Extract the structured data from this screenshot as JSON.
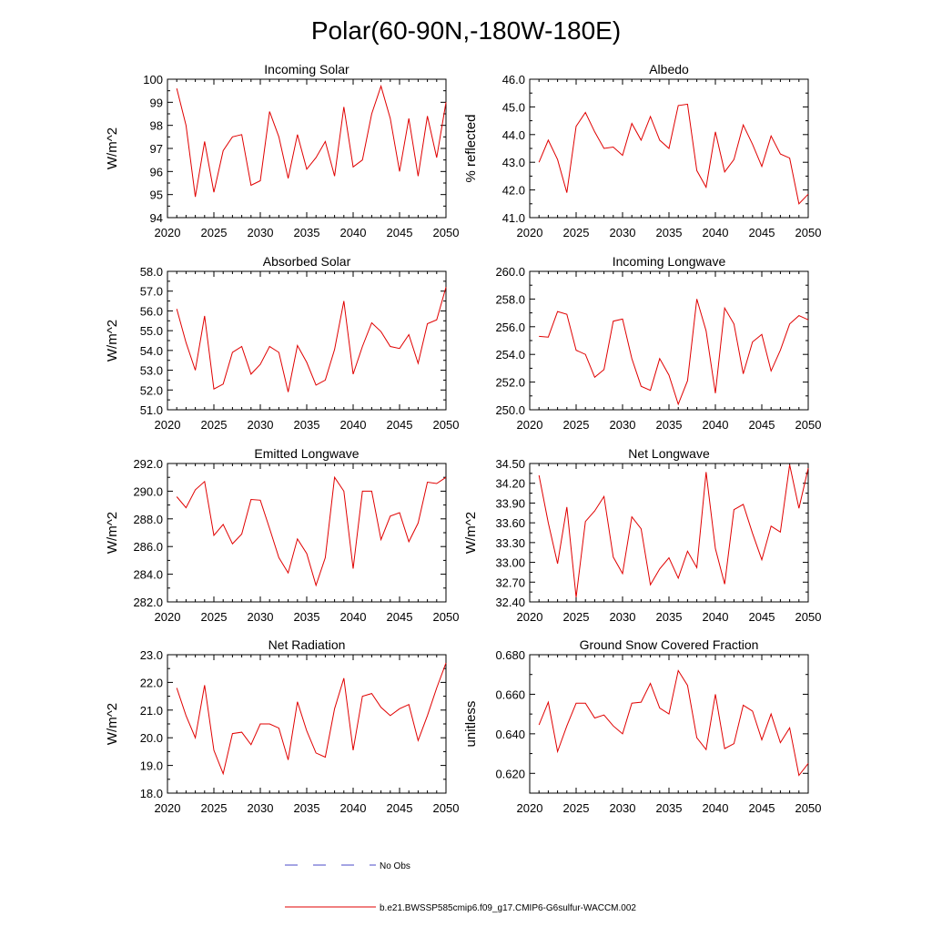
{
  "title": "Polar(60-90N,-180W-180E)",
  "legend": {
    "entries": [
      {
        "label": "No Obs",
        "color": "#4a4ac8",
        "style": "dashed"
      },
      {
        "label": "b.e21.BWSSP585cmip6.f09_g17.CMIP6-G6sulfur-WACCM.002",
        "color": "#e00000",
        "style": "solid"
      }
    ]
  },
  "chart_data": [
    {
      "type": "line",
      "title": "Incoming Solar",
      "ylabel": "W/m^2",
      "xlim": [
        2020,
        2050
      ],
      "ylim": [
        94,
        100
      ],
      "xticks": [
        2020,
        2025,
        2030,
        2035,
        2040,
        2045,
        2050
      ],
      "yticks": [
        94,
        95,
        96,
        97,
        98,
        99,
        100
      ],
      "ytick_labels": [
        "94",
        "95",
        "96",
        "97",
        "98",
        "99",
        "100"
      ],
      "x": [
        2021,
        2022,
        2023,
        2024,
        2025,
        2026,
        2027,
        2028,
        2029,
        2030,
        2031,
        2032,
        2033,
        2034,
        2035,
        2036,
        2037,
        2038,
        2039,
        2040,
        2041,
        2042,
        2043,
        2044,
        2045,
        2046,
        2047,
        2048,
        2049,
        2050
      ],
      "values": [
        99.6,
        98.0,
        94.9,
        97.3,
        95.1,
        96.9,
        97.5,
        97.6,
        95.4,
        95.6,
        98.6,
        97.5,
        95.7,
        97.6,
        96.1,
        96.6,
        97.3,
        95.8,
        98.8,
        96.2,
        96.5,
        98.5,
        99.7,
        98.3,
        96.0,
        98.3,
        95.8,
        98.4,
        96.6,
        99.0
      ]
    },
    {
      "type": "line",
      "title": "Albedo",
      "ylabel": "% reflected",
      "xlim": [
        2020,
        2050
      ],
      "ylim": [
        41.0,
        46.0
      ],
      "xticks": [
        2020,
        2025,
        2030,
        2035,
        2040,
        2045,
        2050
      ],
      "yticks": [
        41,
        42,
        43,
        44,
        45,
        46
      ],
      "ytick_labels": [
        "41.0",
        "42.0",
        "43.0",
        "44.0",
        "45.0",
        "46.0"
      ],
      "x": [
        2021,
        2022,
        2023,
        2024,
        2025,
        2026,
        2027,
        2028,
        2029,
        2030,
        2031,
        2032,
        2033,
        2034,
        2035,
        2036,
        2037,
        2038,
        2039,
        2040,
        2041,
        2042,
        2043,
        2044,
        2045,
        2046,
        2047,
        2048,
        2049,
        2050
      ],
      "values": [
        43.0,
        43.8,
        43.1,
        41.9,
        44.3,
        44.8,
        44.1,
        43.5,
        43.55,
        43.25,
        44.4,
        43.8,
        44.65,
        43.8,
        43.5,
        45.05,
        45.1,
        42.7,
        42.1,
        44.1,
        42.65,
        43.1,
        44.35,
        43.65,
        42.85,
        43.95,
        43.3,
        43.15,
        41.5,
        41.85
      ]
    },
    {
      "type": "line",
      "title": "Absorbed Solar",
      "ylabel": "W/m^2",
      "xlim": [
        2020,
        2050
      ],
      "ylim": [
        51.0,
        58.0
      ],
      "xticks": [
        2020,
        2025,
        2030,
        2035,
        2040,
        2045,
        2050
      ],
      "yticks": [
        51,
        52,
        53,
        54,
        55,
        56,
        57,
        58
      ],
      "ytick_labels": [
        "51.0",
        "52.0",
        "53.0",
        "54.0",
        "55.0",
        "56.0",
        "57.0",
        "58.0"
      ],
      "x": [
        2021,
        2022,
        2023,
        2024,
        2025,
        2026,
        2027,
        2028,
        2029,
        2030,
        2031,
        2032,
        2033,
        2034,
        2035,
        2036,
        2037,
        2038,
        2039,
        2040,
        2041,
        2042,
        2043,
        2044,
        2045,
        2046,
        2047,
        2048,
        2049,
        2050
      ],
      "values": [
        56.1,
        54.4,
        53.0,
        55.75,
        52.05,
        52.3,
        53.9,
        54.2,
        52.8,
        53.3,
        54.2,
        53.9,
        51.9,
        54.25,
        53.4,
        52.25,
        52.5,
        54.05,
        56.5,
        52.8,
        54.2,
        55.4,
        54.95,
        54.2,
        54.1,
        54.8,
        53.35,
        55.35,
        55.55,
        57.2
      ]
    },
    {
      "type": "line",
      "title": "Incoming Longwave",
      "ylabel": "",
      "xlim": [
        2020,
        2050
      ],
      "ylim": [
        250.0,
        260.0
      ],
      "xticks": [
        2020,
        2025,
        2030,
        2035,
        2040,
        2045,
        2050
      ],
      "yticks": [
        250,
        252,
        254,
        256,
        258,
        260
      ],
      "ytick_labels": [
        "250.0",
        "252.0",
        "254.0",
        "256.0",
        "258.0",
        "260.0"
      ],
      "x": [
        2021,
        2022,
        2023,
        2024,
        2025,
        2026,
        2027,
        2028,
        2029,
        2030,
        2031,
        2032,
        2033,
        2034,
        2035,
        2036,
        2037,
        2038,
        2039,
        2040,
        2041,
        2042,
        2043,
        2044,
        2045,
        2046,
        2047,
        2048,
        2049,
        2050
      ],
      "values": [
        255.3,
        255.25,
        257.1,
        256.9,
        254.3,
        254.0,
        252.35,
        252.9,
        256.4,
        256.55,
        253.7,
        251.7,
        251.4,
        253.7,
        252.5,
        250.4,
        252.1,
        258.0,
        255.7,
        251.2,
        257.35,
        256.2,
        252.6,
        254.9,
        255.45,
        252.8,
        254.3,
        256.2,
        256.8,
        256.5
      ]
    },
    {
      "type": "line",
      "title": "Emitted Longwave",
      "ylabel": "W/m^2",
      "xlim": [
        2020,
        2050
      ],
      "ylim": [
        282.0,
        292.0
      ],
      "xticks": [
        2020,
        2025,
        2030,
        2035,
        2040,
        2045,
        2050
      ],
      "yticks": [
        282,
        284,
        286,
        288,
        290,
        292
      ],
      "ytick_labels": [
        "282.0",
        "284.0",
        "286.0",
        "288.0",
        "290.0",
        "292.0"
      ],
      "x": [
        2021,
        2022,
        2023,
        2024,
        2025,
        2026,
        2027,
        2028,
        2029,
        2030,
        2031,
        2032,
        2033,
        2034,
        2035,
        2036,
        2037,
        2038,
        2039,
        2040,
        2041,
        2042,
        2043,
        2044,
        2045,
        2046,
        2047,
        2048,
        2049,
        2050
      ],
      "values": [
        289.6,
        288.8,
        290.1,
        290.7,
        286.8,
        287.6,
        286.2,
        286.9,
        289.4,
        289.35,
        287.3,
        285.2,
        284.1,
        286.55,
        285.5,
        283.2,
        285.2,
        291.0,
        290.0,
        284.4,
        290.0,
        290.0,
        286.5,
        288.2,
        288.45,
        286.35,
        287.7,
        290.65,
        290.55,
        291.0
      ]
    },
    {
      "type": "line",
      "title": "Net Longwave",
      "ylabel": "W/m^2",
      "xlim": [
        2020,
        2050
      ],
      "ylim": [
        32.4,
        34.5
      ],
      "xticks": [
        2020,
        2025,
        2030,
        2035,
        2040,
        2045,
        2050
      ],
      "yticks": [
        32.4,
        32.7,
        33.0,
        33.3,
        33.6,
        33.9,
        34.2,
        34.5
      ],
      "ytick_labels": [
        "32.40",
        "32.70",
        "33.00",
        "33.30",
        "33.60",
        "33.90",
        "34.20",
        "34.50"
      ],
      "x": [
        2021,
        2022,
        2023,
        2024,
        2025,
        2026,
        2027,
        2028,
        2029,
        2030,
        2031,
        2032,
        2033,
        2034,
        2035,
        2036,
        2037,
        2038,
        2039,
        2040,
        2041,
        2042,
        2043,
        2044,
        2045,
        2046,
        2047,
        2048,
        2049,
        2050
      ],
      "values": [
        34.32,
        33.6,
        32.98,
        33.84,
        32.47,
        33.62,
        33.78,
        34.0,
        33.08,
        32.83,
        33.69,
        33.51,
        32.66,
        32.9,
        33.07,
        32.76,
        33.17,
        32.92,
        34.37,
        33.21,
        32.67,
        33.8,
        33.88,
        33.44,
        33.04,
        33.55,
        33.46,
        34.48,
        33.82,
        34.43
      ]
    },
    {
      "type": "line",
      "title": "Net Radiation",
      "ylabel": "W/m^2",
      "xlim": [
        2020,
        2050
      ],
      "ylim": [
        18.0,
        23.0
      ],
      "xticks": [
        2020,
        2025,
        2030,
        2035,
        2040,
        2045,
        2050
      ],
      "yticks": [
        18,
        19,
        20,
        21,
        22,
        23
      ],
      "ytick_labels": [
        "18.0",
        "19.0",
        "20.0",
        "21.0",
        "22.0",
        "23.0"
      ],
      "x": [
        2021,
        2022,
        2023,
        2024,
        2025,
        2026,
        2027,
        2028,
        2029,
        2030,
        2031,
        2032,
        2033,
        2034,
        2035,
        2036,
        2037,
        2038,
        2039,
        2040,
        2041,
        2042,
        2043,
        2044,
        2045,
        2046,
        2047,
        2048,
        2049,
        2050
      ],
      "values": [
        21.8,
        20.8,
        20.0,
        21.9,
        19.55,
        18.7,
        20.15,
        20.2,
        19.75,
        20.5,
        20.5,
        20.35,
        19.2,
        21.3,
        20.25,
        19.45,
        19.3,
        21.05,
        22.15,
        19.55,
        21.5,
        21.6,
        21.1,
        20.8,
        21.05,
        21.2,
        19.9,
        20.8,
        21.8,
        22.7
      ]
    },
    {
      "type": "line",
      "title": "Ground Snow Covered Fraction",
      "ylabel": "unitless",
      "xlim": [
        2020,
        2050
      ],
      "ylim": [
        0.61,
        0.68
      ],
      "xticks": [
        2020,
        2025,
        2030,
        2035,
        2040,
        2045,
        2050
      ],
      "yticks": [
        0.62,
        0.64,
        0.66,
        0.68
      ],
      "ytick_labels": [
        "0.620",
        "0.640",
        "0.660",
        "0.680"
      ],
      "x": [
        2021,
        2022,
        2023,
        2024,
        2025,
        2026,
        2027,
        2028,
        2029,
        2030,
        2031,
        2032,
        2033,
        2034,
        2035,
        2036,
        2037,
        2038,
        2039,
        2040,
        2041,
        2042,
        2043,
        2044,
        2045,
        2046,
        2047,
        2048,
        2049,
        2050
      ],
      "values": [
        0.6445,
        0.656,
        0.631,
        0.644,
        0.6555,
        0.6555,
        0.648,
        0.6495,
        0.644,
        0.64,
        0.6555,
        0.656,
        0.6655,
        0.653,
        0.65,
        0.672,
        0.6645,
        0.638,
        0.632,
        0.66,
        0.6325,
        0.635,
        0.6545,
        0.6515,
        0.637,
        0.65,
        0.6355,
        0.643,
        0.619,
        0.625
      ]
    }
  ]
}
